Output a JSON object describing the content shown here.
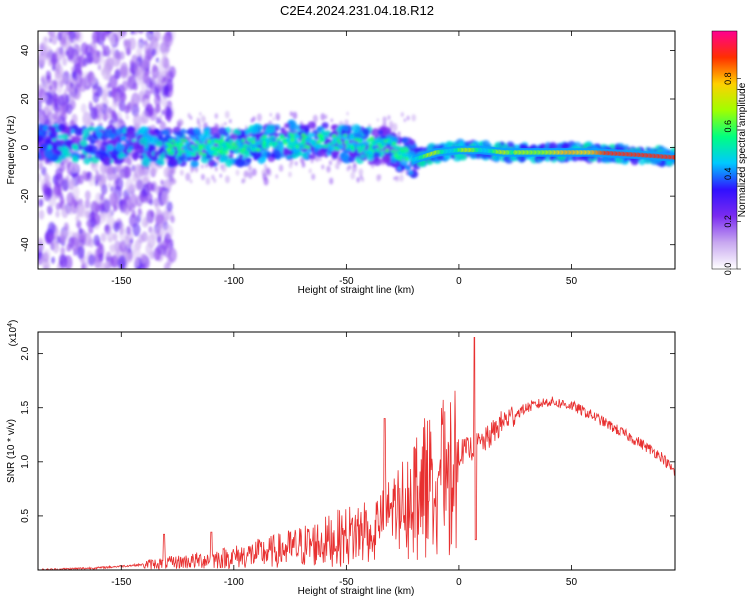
{
  "title": "C2E4.2024.231.04.18.R12",
  "chart_data": [
    {
      "type": "heatmap",
      "title": "C2E4.2024.231.04.18.R12",
      "xlabel": "Height of straight line (km)",
      "ylabel": "Frequency (Hz)",
      "xlim": [
        -187,
        96
      ],
      "ylim": [
        -50,
        48
      ],
      "xticks": [
        -150,
        -100,
        -50,
        0,
        50
      ],
      "xtick_labels": [
        "-150",
        "-100",
        "-50",
        "0",
        "50"
      ],
      "yticks": [
        -40,
        -20,
        0,
        20,
        40
      ],
      "ytick_labels": [
        "-40",
        "-20",
        "0",
        "20",
        "40"
      ],
      "ridge": [
        {
          "x": -185,
          "f": 2
        },
        {
          "x": -150,
          "f": 1
        },
        {
          "x": -120,
          "f": 0
        },
        {
          "x": -100,
          "f": 0
        },
        {
          "x": -75,
          "f": 3
        },
        {
          "x": -50,
          "f": 2
        },
        {
          "x": -30,
          "f": 0
        },
        {
          "x": -20,
          "f": -5
        },
        {
          "x": -10,
          "f": -2
        },
        {
          "x": 0,
          "f": -1
        },
        {
          "x": 10,
          "f": -1
        },
        {
          "x": 20,
          "f": -2
        },
        {
          "x": 40,
          "f": -2
        },
        {
          "x": 60,
          "f": -2
        },
        {
          "x": 80,
          "f": -3
        },
        {
          "x": 95,
          "f": -4
        }
      ],
      "colorbar": {
        "label": "Normalized spectral amplitude",
        "range": [
          0,
          1
        ],
        "ticks": [
          0.0,
          0.2,
          0.4,
          0.6,
          0.8
        ],
        "tick_labels": [
          "0.0",
          "0.2",
          "0.4",
          "0.6",
          "0.8"
        ],
        "colors": [
          "#ffffff",
          "#c8a8f0",
          "#7b2cf0",
          "#3010ff",
          "#00c8ff",
          "#00ff80",
          "#a0ff00",
          "#ffd000",
          "#ff3000",
          "#ff0090"
        ]
      }
    },
    {
      "type": "line",
      "xlabel": "Height of straight line (km)",
      "ylabel": "SNR (10 * v/v)",
      "y_scale_label": "(x10",
      "y_scale_exponent": "4",
      "y_scale_close": ")",
      "xlim": [
        -187,
        96
      ],
      "ylim": [
        0,
        2.2
      ],
      "xticks": [
        -150,
        -100,
        -50,
        0,
        50
      ],
      "xtick_labels": [
        "-150",
        "-100",
        "-50",
        "0",
        "50"
      ],
      "yticks": [
        0.5,
        1.0,
        1.5,
        2.0
      ],
      "ytick_labels": [
        "0.5",
        "1.0",
        "1.5",
        "2.0"
      ],
      "color": "#e83030",
      "envelope": [
        {
          "x": -187,
          "y": 0.0
        },
        {
          "x": -160,
          "y": 0.02
        },
        {
          "x": -140,
          "y": 0.05
        },
        {
          "x": -120,
          "y": 0.08
        },
        {
          "x": -100,
          "y": 0.12
        },
        {
          "x": -80,
          "y": 0.18
        },
        {
          "x": -60,
          "y": 0.26
        },
        {
          "x": -45,
          "y": 0.34
        },
        {
          "x": -35,
          "y": 0.46
        },
        {
          "x": -25,
          "y": 0.68
        },
        {
          "x": -15,
          "y": 0.92
        },
        {
          "x": -5,
          "y": 1.05
        },
        {
          "x": 5,
          "y": 1.12
        },
        {
          "x": 12,
          "y": 1.2
        },
        {
          "x": 20,
          "y": 1.38
        },
        {
          "x": 30,
          "y": 1.5
        },
        {
          "x": 40,
          "y": 1.56
        },
        {
          "x": 50,
          "y": 1.52
        },
        {
          "x": 60,
          "y": 1.42
        },
        {
          "x": 70,
          "y": 1.3
        },
        {
          "x": 80,
          "y": 1.18
        },
        {
          "x": 90,
          "y": 1.05
        },
        {
          "x": 96,
          "y": 0.9
        }
      ],
      "features": [
        {
          "x": -131,
          "y": 0.33
        },
        {
          "x": -110,
          "y": 0.35
        },
        {
          "x": -33,
          "y": 1.4
        },
        {
          "x": 7,
          "y": 2.15
        },
        {
          "x": 7.5,
          "y": 0.28
        }
      ]
    }
  ]
}
